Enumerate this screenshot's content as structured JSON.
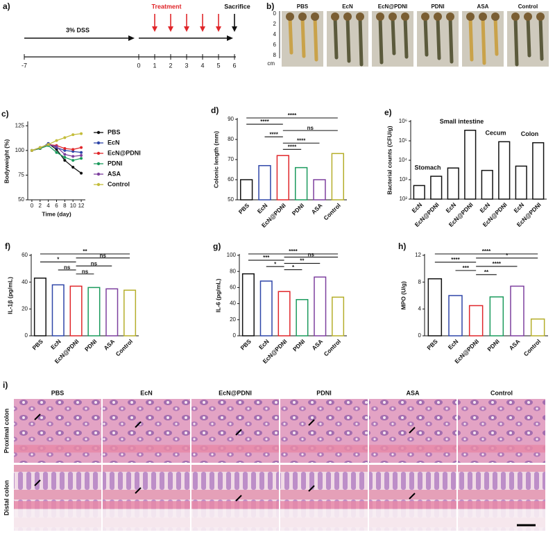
{
  "panel_a": {
    "label": "a)",
    "treatment": "Treatment",
    "sacrifice": "Sacrifice",
    "dss": "3% DSS",
    "ticks": [
      -7,
      0,
      1,
      2,
      3,
      4,
      5,
      6
    ]
  },
  "panel_b": {
    "label": "b)",
    "groups": [
      "PBS",
      "EcN",
      "EcN@PDNI",
      "PDNI",
      "ASA",
      "Control"
    ],
    "ruler": [
      0,
      2,
      4,
      6,
      8
    ],
    "unit": "cm"
  },
  "chart_data": [
    {
      "panel": "c)",
      "type": "line",
      "xlabel": "Time (day)",
      "ylabel": "Bodyweight (%)",
      "x": [
        0,
        2,
        4,
        6,
        8,
        10,
        12
      ],
      "xlim": [
        -1,
        13
      ],
      "xticks": [
        0,
        2,
        4,
        6,
        8,
        10,
        12
      ],
      "ylim": [
        50,
        128
      ],
      "yticks": [
        50,
        75,
        100,
        125
      ],
      "series": [
        {
          "name": "PBS",
          "color": "#111111",
          "values": [
            100,
            102,
            107,
            101,
            90,
            83,
            77
          ]
        },
        {
          "name": "EcN",
          "color": "#2e45a8",
          "values": [
            100,
            102,
            107,
            103,
            100,
            99,
            98
          ]
        },
        {
          "name": "EcN@PDNI",
          "color": "#e0262a",
          "values": [
            100,
            102,
            106,
            105,
            102,
            101,
            103
          ]
        },
        {
          "name": "PDNI",
          "color": "#1a9a5c",
          "values": [
            100,
            102,
            105,
            98,
            93,
            90,
            92
          ]
        },
        {
          "name": "ASA",
          "color": "#7d3f9e",
          "values": [
            100,
            103,
            106,
            104,
            96,
            94,
            95
          ]
        },
        {
          "name": "Control",
          "color": "#c4bd3a",
          "values": [
            100,
            103,
            106,
            110,
            113,
            116,
            117
          ]
        }
      ]
    },
    {
      "panel": "d)",
      "type": "bar",
      "ylabel": "Colonic length (mm)",
      "categories": [
        "PBS",
        "EcN",
        "EcN@PDNI",
        "PDNI",
        "ASA",
        "Control"
      ],
      "values": [
        60,
        67,
        72,
        66,
        60,
        73
      ],
      "colors": [
        "#111111",
        "#2e45a8",
        "#e0262a",
        "#1a9a5c",
        "#7d3f9e",
        "#b5ae2a"
      ],
      "ylim": [
        50,
        90
      ],
      "yticks": [
        50,
        60,
        70,
        80,
        90
      ],
      "brackets": [
        {
          "from": "PBS",
          "to": "Control",
          "label": "****"
        },
        {
          "from": "PBS",
          "to": "EcN@PDNI",
          "label": "****"
        },
        {
          "from": "EcN@PDNI",
          "to": "Control",
          "label": "ns"
        },
        {
          "from": "EcN",
          "to": "EcN@PDNI",
          "label": "****"
        },
        {
          "from": "EcN@PDNI",
          "to": "ASA",
          "label": "****"
        },
        {
          "from": "EcN@PDNI",
          "to": "PDNI",
          "label": "****"
        }
      ]
    },
    {
      "panel": "e)",
      "type": "bar",
      "log": true,
      "ylabel": "Bacterial counts (CFU/g)",
      "categories": [
        "EcN",
        "EcN@PDNI",
        "EcN",
        "EcN@PDNI",
        "EcN",
        "EcN@PDNI",
        "EcN",
        "EcN@PDNI"
      ],
      "values": [
        500,
        1500,
        4000,
        350000,
        3000,
        90000,
        5000,
        80000
      ],
      "colors": [
        "#111111",
        "#111111",
        "#111111",
        "#111111",
        "#111111",
        "#111111",
        "#111111",
        "#111111"
      ],
      "groups": [
        "Stomach",
        "Small intestine",
        "Cecum",
        "Colon"
      ],
      "ylim": [
        100,
        1000000
      ],
      "yticks": [
        {
          "value": 100,
          "label": "10²"
        },
        {
          "value": 1000,
          "label": "10³"
        },
        {
          "value": 10000,
          "label": "10⁴"
        },
        {
          "value": 100000,
          "label": "10⁵"
        },
        {
          "value": 1000000,
          "label": "10⁶"
        }
      ]
    },
    {
      "panel": "f)",
      "type": "bar",
      "ylabel": "IL-1β (pg/mL)",
      "categories": [
        "PBS",
        "EcN",
        "EcN@PDNI",
        "PDNI",
        "ASA",
        "Control"
      ],
      "values": [
        43,
        38,
        37,
        36,
        35,
        34
      ],
      "colors": [
        "#111111",
        "#2e45a8",
        "#e0262a",
        "#1a9a5c",
        "#7d3f9e",
        "#b5ae2a"
      ],
      "ylim": [
        0,
        60
      ],
      "yticks": [
        0,
        20,
        40,
        60
      ],
      "brackets": [
        {
          "from": "PBS",
          "to": "Control",
          "label": "**"
        },
        {
          "from": "EcN@PDNI",
          "to": "Control",
          "label": "ns"
        },
        {
          "from": "PBS",
          "to": "EcN@PDNI",
          "label": "*"
        },
        {
          "from": "EcN@PDNI",
          "to": "ASA",
          "label": "ns"
        },
        {
          "from": "EcN",
          "to": "EcN@PDNI",
          "label": "ns"
        },
        {
          "from": "EcN@PDNI",
          "to": "PDNI",
          "label": "ns"
        }
      ]
    },
    {
      "panel": "g)",
      "type": "bar",
      "ylabel": "IL-6 (pg/mL)",
      "categories": [
        "PBS",
        "EcN",
        "EcN@PDNI",
        "PDNI",
        "ASA",
        "Control"
      ],
      "values": [
        77,
        68,
        55,
        45,
        73,
        48
      ],
      "colors": [
        "#111111",
        "#2e45a8",
        "#e0262a",
        "#1a9a5c",
        "#7d3f9e",
        "#b5ae2a"
      ],
      "ylim": [
        0,
        100
      ],
      "yticks": [
        0,
        20,
        40,
        60,
        80,
        100
      ],
      "brackets": [
        {
          "from": "PBS",
          "to": "Control",
          "label": "****"
        },
        {
          "from": "EcN@PDNI",
          "to": "Control",
          "label": "ns"
        },
        {
          "from": "PBS",
          "to": "EcN@PDNI",
          "label": "***"
        },
        {
          "from": "EcN@PDNI",
          "to": "ASA",
          "label": "**"
        },
        {
          "from": "EcN",
          "to": "EcN@PDNI",
          "label": "*"
        },
        {
          "from": "EcN@PDNI",
          "to": "PDNI",
          "label": "*"
        }
      ]
    },
    {
      "panel": "h)",
      "type": "bar",
      "ylabel": "MPO (U/g)",
      "categories": [
        "PBS",
        "EcN",
        "EcN@PDNI",
        "PDNI",
        "ASA",
        "Control"
      ],
      "values": [
        8.5,
        6.0,
        4.5,
        5.8,
        7.4,
        2.5
      ],
      "colors": [
        "#111111",
        "#2e45a8",
        "#e0262a",
        "#1a9a5c",
        "#7d3f9e",
        "#b5ae2a"
      ],
      "ylim": [
        0,
        12
      ],
      "yticks": [
        0,
        4,
        8,
        12
      ],
      "brackets": [
        {
          "from": "PBS",
          "to": "Control",
          "label": "****"
        },
        {
          "from": "EcN@PDNI",
          "to": "Control",
          "label": "*"
        },
        {
          "from": "PBS",
          "to": "EcN@PDNI",
          "label": "****"
        },
        {
          "from": "EcN@PDNI",
          "to": "ASA",
          "label": "****"
        },
        {
          "from": "EcN",
          "to": "EcN@PDNI",
          "label": "***"
        },
        {
          "from": "EcN@PDNI",
          "to": "PDNI",
          "label": "**"
        }
      ]
    }
  ],
  "panel_i": {
    "label": "i)",
    "columns": [
      "PBS",
      "EcN",
      "EcN@PDNI",
      "PDNI",
      "ASA",
      "Control"
    ],
    "rows": [
      "Proximal colon",
      "Distal colon"
    ]
  }
}
